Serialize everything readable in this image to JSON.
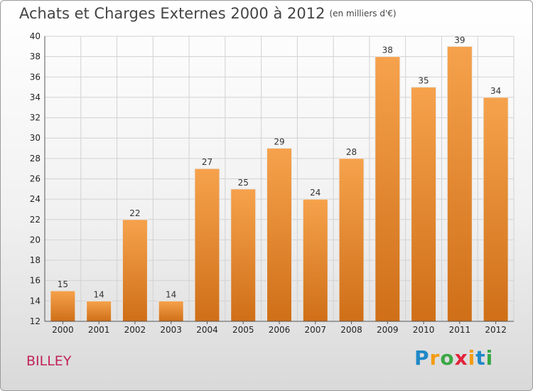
{
  "chart_data": {
    "type": "bar",
    "title": "Achats et Charges Externes 2000 à 2012",
    "unit_label": "(en milliers d'€)",
    "categories": [
      "2000",
      "2001",
      "2002",
      "2003",
      "2004",
      "2005",
      "2006",
      "2007",
      "2008",
      "2009",
      "2010",
      "2011",
      "2012"
    ],
    "values": [
      15,
      14,
      22,
      14,
      27,
      25,
      29,
      24,
      28,
      38,
      35,
      39,
      34
    ],
    "ylim": [
      12,
      40
    ],
    "yticks": [
      12,
      14,
      16,
      18,
      20,
      22,
      24,
      26,
      28,
      30,
      32,
      34,
      36,
      38,
      40
    ],
    "grid": true,
    "bar_color": "#f0923a"
  },
  "commune": "BILLEY",
  "logo": {
    "letters": [
      "P",
      "r",
      "o",
      "x",
      "i",
      "t",
      "i"
    ],
    "colors": [
      "#1e88c8",
      "#f39c12",
      "#3aa845",
      "#e2233b",
      "#f39c12",
      "#1e88c8",
      "#3aa845"
    ]
  }
}
